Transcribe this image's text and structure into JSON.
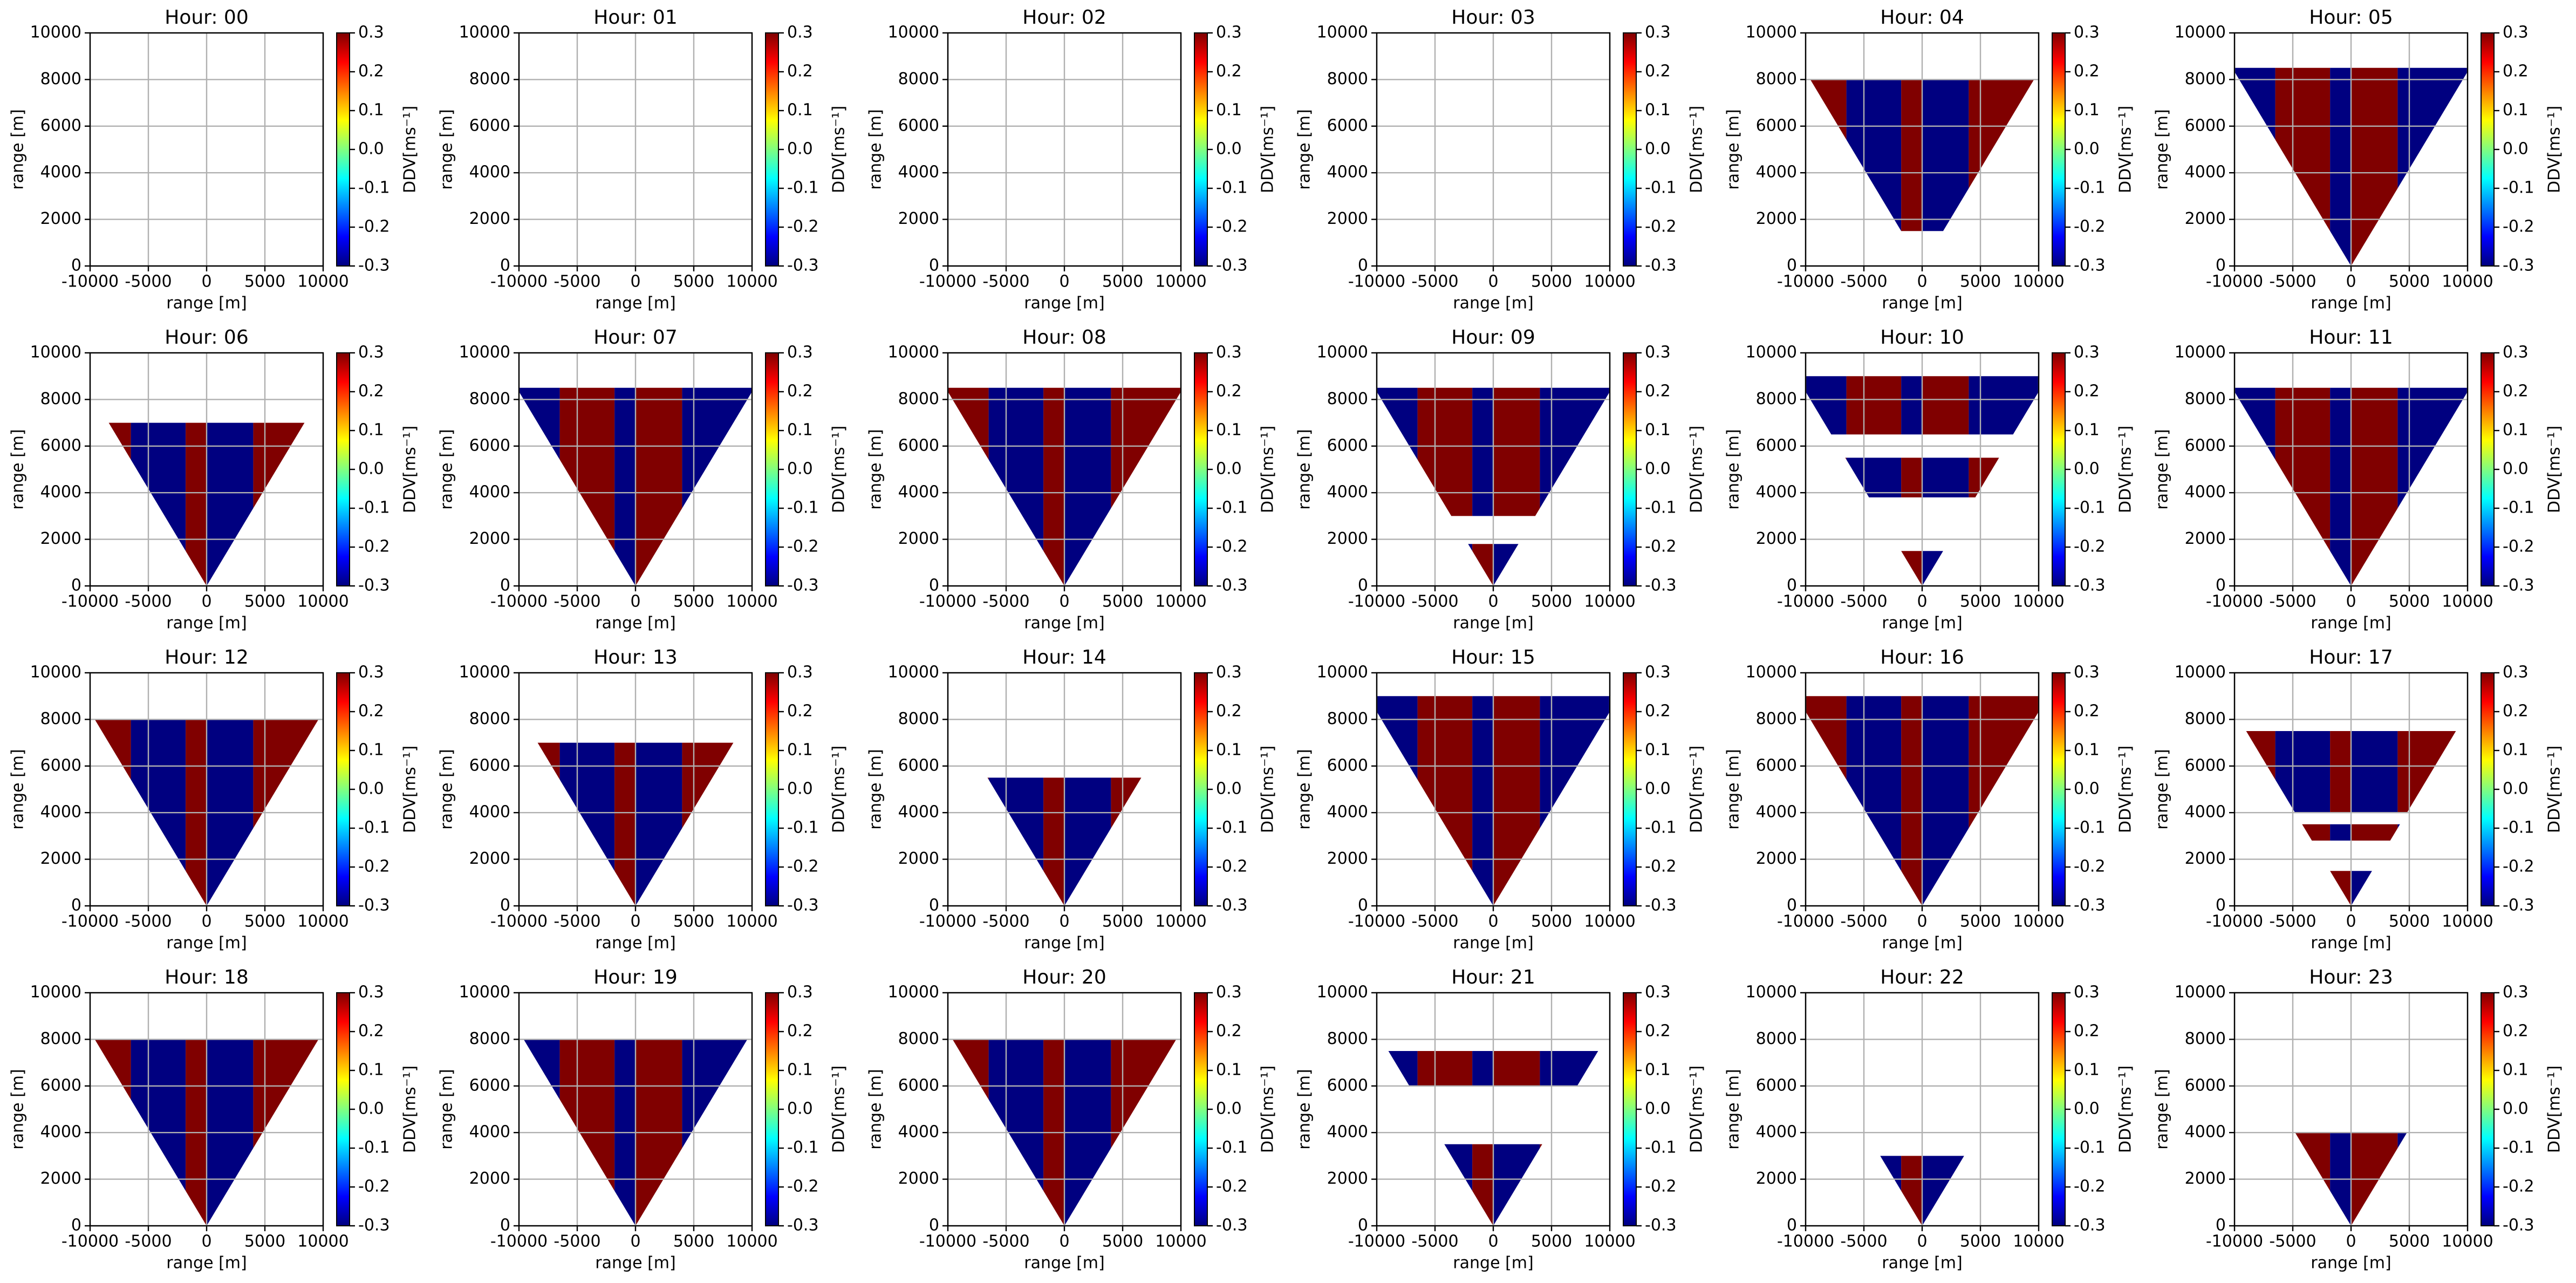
{
  "chart_data": [
    {
      "type": "heatmap",
      "title": "Hour: 00",
      "xlabel": "range [m]",
      "ylabel": "range [m]",
      "xlim": [
        -10000,
        10000
      ],
      "xticks": [
        -10000,
        -5000,
        0,
        5000,
        10000
      ],
      "ylim": [
        0,
        10000
      ],
      "yticks": [
        0,
        2000,
        4000,
        6000,
        8000,
        10000
      ],
      "grid": true,
      "colorbar": {
        "label": "DDV[ms⁻¹]",
        "clim": [
          -0.3,
          0.3
        ],
        "ticks": [
          -0.3,
          -0.2,
          -0.1,
          {
            "value": 0,
            "label": "0.0"
          },
          0.1,
          0.2,
          0.3
        ]
      }
    },
    {
      "type": "heatmap",
      "title": "Hour: 01",
      "xlabel": "range [m]",
      "ylabel": "range [m]",
      "xlim": [
        -10000,
        10000
      ],
      "xticks": [
        -10000,
        -5000,
        0,
        5000,
        10000
      ],
      "ylim": [
        0,
        10000
      ],
      "yticks": [
        0,
        2000,
        4000,
        6000,
        8000,
        10000
      ],
      "grid": true,
      "colorbar": {
        "label": "DDV[ms⁻¹]",
        "clim": [
          -0.3,
          0.3
        ],
        "ticks": [
          -0.3,
          -0.2,
          -0.1,
          {
            "value": 0,
            "label": "0.0"
          },
          0.1,
          0.2,
          0.3
        ]
      }
    },
    {
      "type": "heatmap",
      "title": "Hour: 02",
      "xlabel": "range [m]",
      "ylabel": "range [m]",
      "xlim": [
        -10000,
        10000
      ],
      "xticks": [
        -10000,
        -5000,
        0,
        5000,
        10000
      ],
      "ylim": [
        0,
        10000
      ],
      "yticks": [
        0,
        2000,
        4000,
        6000,
        8000,
        10000
      ],
      "grid": true,
      "colorbar": {
        "label": "DDV[ms⁻¹]",
        "clim": [
          -0.3,
          0.3
        ],
        "ticks": [
          -0.3,
          -0.2,
          -0.1,
          {
            "value": 0,
            "label": "0.0"
          },
          0.1,
          0.2,
          0.3
        ]
      }
    },
    {
      "type": "heatmap",
      "title": "Hour: 03",
      "xlabel": "range [m]",
      "ylabel": "range [m]",
      "xlim": [
        -10000,
        10000
      ],
      "xticks": [
        -10000,
        -5000,
        0,
        5000,
        10000
      ],
      "ylim": [
        0,
        10000
      ],
      "yticks": [
        0,
        2000,
        4000,
        6000,
        8000,
        10000
      ],
      "grid": true,
      "colorbar": {
        "label": "DDV[ms⁻¹]",
        "clim": [
          -0.3,
          0.3
        ],
        "ticks": [
          -0.3,
          -0.2,
          -0.1,
          {
            "value": 0,
            "label": "0.0"
          },
          0.1,
          0.2,
          0.3
        ]
      }
    },
    {
      "type": "heatmap",
      "title": "Hour: 04",
      "xlabel": "range [m]",
      "ylabel": "range [m]",
      "xlim": [
        -10000,
        10000
      ],
      "xticks": [
        -10000,
        -5000,
        0,
        5000,
        10000
      ],
      "ylim": [
        0,
        10000
      ],
      "yticks": [
        0,
        2000,
        4000,
        6000,
        8000,
        10000
      ],
      "grid": true,
      "colorbar": {
        "label": "DDV[ms⁻¹]",
        "clim": [
          -0.3,
          0.3
        ],
        "ticks": [
          -0.3,
          -0.2,
          -0.1,
          {
            "value": 0,
            "label": "0.0"
          },
          0.1,
          0.2,
          0.3
        ]
      }
    },
    {
      "type": "heatmap",
      "title": "Hour: 05",
      "xlabel": "range [m]",
      "ylabel": "range [m]",
      "xlim": [
        -10000,
        10000
      ],
      "xticks": [
        -10000,
        -5000,
        0,
        5000,
        10000
      ],
      "ylim": [
        0,
        10000
      ],
      "yticks": [
        0,
        2000,
        4000,
        6000,
        8000,
        10000
      ],
      "grid": true,
      "colorbar": {
        "label": "DDV[ms⁻¹]",
        "clim": [
          -0.3,
          0.3
        ],
        "ticks": [
          -0.3,
          -0.2,
          -0.1,
          {
            "value": 0,
            "label": "0.0"
          },
          0.1,
          0.2,
          0.3
        ]
      }
    },
    {
      "type": "heatmap",
      "title": "Hour: 06",
      "xlabel": "range [m]",
      "ylabel": "range [m]",
      "xlim": [
        -10000,
        10000
      ],
      "xticks": [
        -10000,
        -5000,
        0,
        5000,
        10000
      ],
      "ylim": [
        0,
        10000
      ],
      "yticks": [
        0,
        2000,
        4000,
        6000,
        8000,
        10000
      ],
      "grid": true,
      "colorbar": {
        "label": "DDV[ms⁻¹]",
        "clim": [
          -0.3,
          0.3
        ],
        "ticks": [
          -0.3,
          -0.2,
          -0.1,
          {
            "value": 0,
            "label": "0.0"
          },
          0.1,
          0.2,
          0.3
        ]
      }
    },
    {
      "type": "heatmap",
      "title": "Hour: 07",
      "xlabel": "range [m]",
      "ylabel": "range [m]",
      "xlim": [
        -10000,
        10000
      ],
      "xticks": [
        -10000,
        -5000,
        0,
        5000,
        10000
      ],
      "ylim": [
        0,
        10000
      ],
      "yticks": [
        0,
        2000,
        4000,
        6000,
        8000,
        10000
      ],
      "grid": true,
      "colorbar": {
        "label": "DDV[ms⁻¹]",
        "clim": [
          -0.3,
          0.3
        ],
        "ticks": [
          -0.3,
          -0.2,
          -0.1,
          {
            "value": 0,
            "label": "0.0"
          },
          0.1,
          0.2,
          0.3
        ]
      }
    },
    {
      "type": "heatmap",
      "title": "Hour: 08",
      "xlabel": "range [m]",
      "ylabel": "range [m]",
      "xlim": [
        -10000,
        10000
      ],
      "xticks": [
        -10000,
        -5000,
        0,
        5000,
        10000
      ],
      "ylim": [
        0,
        10000
      ],
      "yticks": [
        0,
        2000,
        4000,
        6000,
        8000,
        10000
      ],
      "grid": true,
      "colorbar": {
        "label": "DDV[ms⁻¹]",
        "clim": [
          -0.3,
          0.3
        ],
        "ticks": [
          -0.3,
          -0.2,
          -0.1,
          {
            "value": 0,
            "label": "0.0"
          },
          0.1,
          0.2,
          0.3
        ]
      }
    },
    {
      "type": "heatmap",
      "title": "Hour: 09",
      "xlabel": "range [m]",
      "ylabel": "range [m]",
      "xlim": [
        -10000,
        10000
      ],
      "xticks": [
        -10000,
        -5000,
        0,
        5000,
        10000
      ],
      "ylim": [
        0,
        10000
      ],
      "yticks": [
        0,
        2000,
        4000,
        6000,
        8000,
        10000
      ],
      "grid": true,
      "colorbar": {
        "label": "DDV[ms⁻¹]",
        "clim": [
          -0.3,
          0.3
        ],
        "ticks": [
          -0.3,
          -0.2,
          -0.1,
          {
            "value": 0,
            "label": "0.0"
          },
          0.1,
          0.2,
          0.3
        ]
      }
    },
    {
      "type": "heatmap",
      "title": "Hour: 10",
      "xlabel": "range [m]",
      "ylabel": "range [m]",
      "xlim": [
        -10000,
        10000
      ],
      "xticks": [
        -10000,
        -5000,
        0,
        5000,
        10000
      ],
      "ylim": [
        0,
        10000
      ],
      "yticks": [
        0,
        2000,
        4000,
        6000,
        8000,
        10000
      ],
      "grid": true,
      "colorbar": {
        "label": "DDV[ms⁻¹]",
        "clim": [
          -0.3,
          0.3
        ],
        "ticks": [
          -0.3,
          -0.2,
          -0.1,
          {
            "value": 0,
            "label": "0.0"
          },
          0.1,
          0.2,
          0.3
        ]
      }
    },
    {
      "type": "heatmap",
      "title": "Hour: 11",
      "xlabel": "range [m]",
      "ylabel": "range [m]",
      "xlim": [
        -10000,
        10000
      ],
      "xticks": [
        -10000,
        -5000,
        0,
        5000,
        10000
      ],
      "ylim": [
        0,
        10000
      ],
      "yticks": [
        0,
        2000,
        4000,
        6000,
        8000,
        10000
      ],
      "grid": true,
      "colorbar": {
        "label": "DDV[ms⁻¹]",
        "clim": [
          -0.3,
          0.3
        ],
        "ticks": [
          -0.3,
          -0.2,
          -0.1,
          {
            "value": 0,
            "label": "0.0"
          },
          0.1,
          0.2,
          0.3
        ]
      }
    },
    {
      "type": "heatmap",
      "title": "Hour: 12",
      "xlabel": "range [m]",
      "ylabel": "range [m]",
      "xlim": [
        -10000,
        10000
      ],
      "xticks": [
        -10000,
        -5000,
        0,
        5000,
        10000
      ],
      "ylim": [
        0,
        10000
      ],
      "yticks": [
        0,
        2000,
        4000,
        6000,
        8000,
        10000
      ],
      "grid": true,
      "colorbar": {
        "label": "DDV[ms⁻¹]",
        "clim": [
          -0.3,
          0.3
        ],
        "ticks": [
          -0.3,
          -0.2,
          -0.1,
          {
            "value": 0,
            "label": "0.0"
          },
          0.1,
          0.2,
          0.3
        ]
      }
    },
    {
      "type": "heatmap",
      "title": "Hour: 13",
      "xlabel": "range [m]",
      "ylabel": "range [m]",
      "xlim": [
        -10000,
        10000
      ],
      "xticks": [
        -10000,
        -5000,
        0,
        5000,
        10000
      ],
      "ylim": [
        0,
        10000
      ],
      "yticks": [
        0,
        2000,
        4000,
        6000,
        8000,
        10000
      ],
      "grid": true,
      "colorbar": {
        "label": "DDV[ms⁻¹]",
        "clim": [
          -0.3,
          0.3
        ],
        "ticks": [
          -0.3,
          -0.2,
          -0.1,
          {
            "value": 0,
            "label": "0.0"
          },
          0.1,
          0.2,
          0.3
        ]
      }
    },
    {
      "type": "heatmap",
      "title": "Hour: 14",
      "xlabel": "range [m]",
      "ylabel": "range [m]",
      "xlim": [
        -10000,
        10000
      ],
      "xticks": [
        -10000,
        -5000,
        0,
        5000,
        10000
      ],
      "ylim": [
        0,
        10000
      ],
      "yticks": [
        0,
        2000,
        4000,
        6000,
        8000,
        10000
      ],
      "grid": true,
      "colorbar": {
        "label": "DDV[ms⁻¹]",
        "clim": [
          -0.3,
          0.3
        ],
        "ticks": [
          -0.3,
          -0.2,
          -0.1,
          {
            "value": 0,
            "label": "0.0"
          },
          0.1,
          0.2,
          0.3
        ]
      }
    },
    {
      "type": "heatmap",
      "title": "Hour: 15",
      "xlabel": "range [m]",
      "ylabel": "range [m]",
      "xlim": [
        -10000,
        10000
      ],
      "xticks": [
        -10000,
        -5000,
        0,
        5000,
        10000
      ],
      "ylim": [
        0,
        10000
      ],
      "yticks": [
        0,
        2000,
        4000,
        6000,
        8000,
        10000
      ],
      "grid": true,
      "colorbar": {
        "label": "DDV[ms⁻¹]",
        "clim": [
          -0.3,
          0.3
        ],
        "ticks": [
          -0.3,
          -0.2,
          -0.1,
          {
            "value": 0,
            "label": "0.0"
          },
          0.1,
          0.2,
          0.3
        ]
      }
    },
    {
      "type": "heatmap",
      "title": "Hour: 16",
      "xlabel": "range [m]",
      "ylabel": "range [m]",
      "xlim": [
        -10000,
        10000
      ],
      "xticks": [
        -10000,
        -5000,
        0,
        5000,
        10000
      ],
      "ylim": [
        0,
        10000
      ],
      "yticks": [
        0,
        2000,
        4000,
        6000,
        8000,
        10000
      ],
      "grid": true,
      "colorbar": {
        "label": "DDV[ms⁻¹]",
        "clim": [
          -0.3,
          0.3
        ],
        "ticks": [
          -0.3,
          -0.2,
          -0.1,
          {
            "value": 0,
            "label": "0.0"
          },
          0.1,
          0.2,
          0.3
        ]
      }
    },
    {
      "type": "heatmap",
      "title": "Hour: 17",
      "xlabel": "range [m]",
      "ylabel": "range [m]",
      "xlim": [
        -10000,
        10000
      ],
      "xticks": [
        -10000,
        -5000,
        0,
        5000,
        10000
      ],
      "ylim": [
        0,
        10000
      ],
      "yticks": [
        0,
        2000,
        4000,
        6000,
        8000,
        10000
      ],
      "grid": true,
      "colorbar": {
        "label": "DDV[ms⁻¹]",
        "clim": [
          -0.3,
          0.3
        ],
        "ticks": [
          -0.3,
          -0.2,
          -0.1,
          {
            "value": 0,
            "label": "0.0"
          },
          0.1,
          0.2,
          0.3
        ]
      }
    },
    {
      "type": "heatmap",
      "title": "Hour: 18",
      "xlabel": "range [m]",
      "ylabel": "range [m]",
      "xlim": [
        -10000,
        10000
      ],
      "xticks": [
        -10000,
        -5000,
        0,
        5000,
        10000
      ],
      "ylim": [
        0,
        10000
      ],
      "yticks": [
        0,
        2000,
        4000,
        6000,
        8000,
        10000
      ],
      "grid": true,
      "colorbar": {
        "label": "DDV[ms⁻¹]",
        "clim": [
          -0.3,
          0.3
        ],
        "ticks": [
          -0.3,
          -0.2,
          -0.1,
          {
            "value": 0,
            "label": "0.0"
          },
          0.1,
          0.2,
          0.3
        ]
      }
    },
    {
      "type": "heatmap",
      "title": "Hour: 19",
      "xlabel": "range [m]",
      "ylabel": "range [m]",
      "xlim": [
        -10000,
        10000
      ],
      "xticks": [
        -10000,
        -5000,
        0,
        5000,
        10000
      ],
      "ylim": [
        0,
        10000
      ],
      "yticks": [
        0,
        2000,
        4000,
        6000,
        8000,
        10000
      ],
      "grid": true,
      "colorbar": {
        "label": "DDV[ms⁻¹]",
        "clim": [
          -0.3,
          0.3
        ],
        "ticks": [
          -0.3,
          -0.2,
          -0.1,
          {
            "value": 0,
            "label": "0.0"
          },
          0.1,
          0.2,
          0.3
        ]
      }
    },
    {
      "type": "heatmap",
      "title": "Hour: 20",
      "xlabel": "range [m]",
      "ylabel": "range [m]",
      "xlim": [
        -10000,
        10000
      ],
      "xticks": [
        -10000,
        -5000,
        0,
        5000,
        10000
      ],
      "ylim": [
        0,
        10000
      ],
      "yticks": [
        0,
        2000,
        4000,
        6000,
        8000,
        10000
      ],
      "grid": true,
      "colorbar": {
        "label": "DDV[ms⁻¹]",
        "clim": [
          -0.3,
          0.3
        ],
        "ticks": [
          -0.3,
          -0.2,
          -0.1,
          {
            "value": 0,
            "label": "0.0"
          },
          0.1,
          0.2,
          0.3
        ]
      }
    },
    {
      "type": "heatmap",
      "title": "Hour: 21",
      "xlabel": "range [m]",
      "ylabel": "range [m]",
      "xlim": [
        -10000,
        10000
      ],
      "xticks": [
        -10000,
        -5000,
        0,
        5000,
        10000
      ],
      "ylim": [
        0,
        10000
      ],
      "yticks": [
        0,
        2000,
        4000,
        6000,
        8000,
        10000
      ],
      "grid": true,
      "colorbar": {
        "label": "DDV[ms⁻¹]",
        "clim": [
          -0.3,
          0.3
        ],
        "ticks": [
          -0.3,
          -0.2,
          -0.1,
          {
            "value": 0,
            "label": "0.0"
          },
          0.1,
          0.2,
          0.3
        ]
      }
    },
    {
      "type": "heatmap",
      "title": "Hour: 22",
      "xlabel": "range [m]",
      "ylabel": "range [m]",
      "xlim": [
        -10000,
        10000
      ],
      "xticks": [
        -10000,
        -5000,
        0,
        5000,
        10000
      ],
      "ylim": [
        0,
        10000
      ],
      "yticks": [
        0,
        2000,
        4000,
        6000,
        8000,
        10000
      ],
      "grid": true,
      "colorbar": {
        "label": "DDV[ms⁻¹]",
        "clim": [
          -0.3,
          0.3
        ],
        "ticks": [
          -0.3,
          -0.2,
          -0.1,
          {
            "value": 0,
            "label": "0.0"
          },
          0.1,
          0.2,
          0.3
        ]
      }
    },
    {
      "type": "heatmap",
      "title": "Hour: 23",
      "xlabel": "range [m]",
      "ylabel": "range [m]",
      "xlim": [
        -10000,
        10000
      ],
      "xticks": [
        -10000,
        -5000,
        0,
        5000,
        10000
      ],
      "ylim": [
        0,
        10000
      ],
      "yticks": [
        0,
        2000,
        4000,
        6000,
        8000,
        10000
      ],
      "grid": true,
      "colorbar": {
        "label": "DDV[ms⁻¹]",
        "clim": [
          -0.3,
          0.3
        ],
        "ticks": [
          -0.3,
          -0.2,
          -0.1,
          {
            "value": 0,
            "label": "0.0"
          },
          0.1,
          0.2,
          0.3
        ]
      }
    }
  ]
}
